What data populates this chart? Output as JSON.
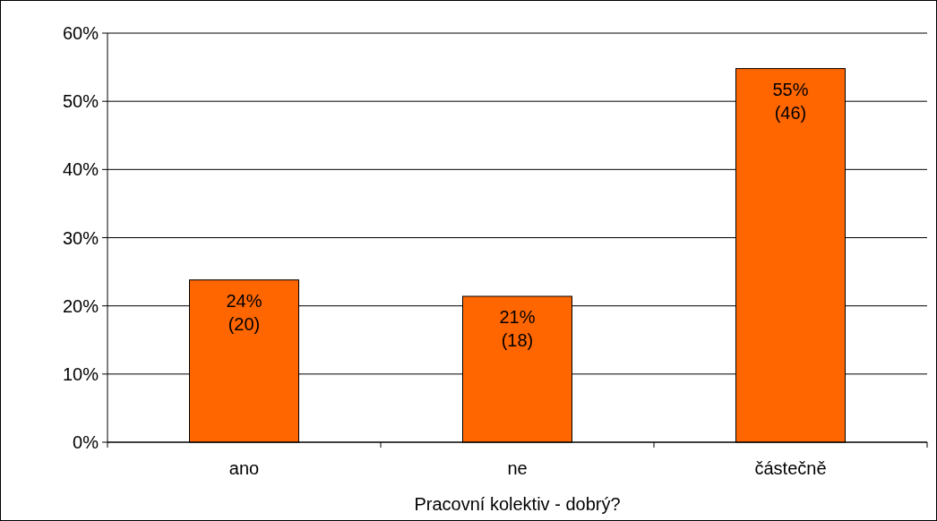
{
  "chart_data": {
    "type": "bar",
    "xlabel": "Pracovní kolektiv - dobrý?",
    "categories": [
      "ano",
      "ne",
      "částečně"
    ],
    "values": [
      23.8,
      21.4,
      54.8
    ],
    "color": "#ff6600",
    "value_labels": [
      "24% (20)",
      "21% (18)",
      "55% (46)"
    ],
    "ylim": [
      0,
      60
    ],
    "yticks": [
      {
        "value": 0,
        "label": "0%"
      },
      {
        "value": 10,
        "label": "10%"
      },
      {
        "value": 20,
        "label": "20%"
      },
      {
        "value": 30,
        "label": "30%"
      },
      {
        "value": 40,
        "label": "40%"
      },
      {
        "value": 50,
        "label": "50%"
      },
      {
        "value": 60,
        "label": "60%"
      }
    ],
    "grid": "y"
  }
}
